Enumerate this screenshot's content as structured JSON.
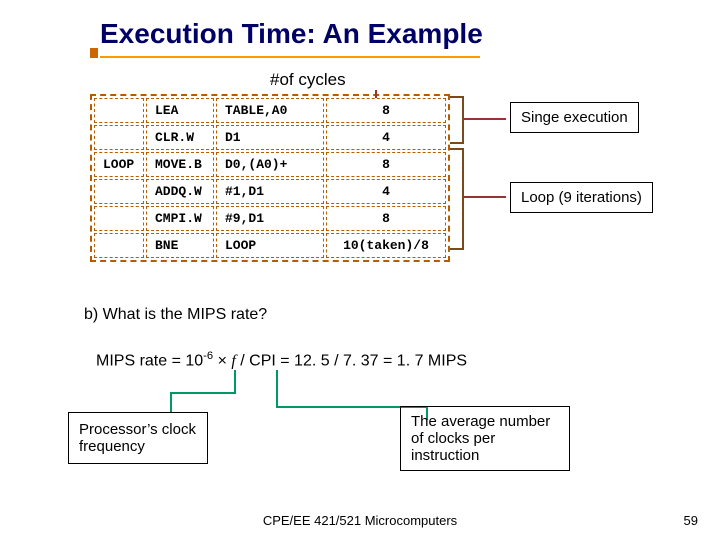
{
  "title": "Execution Time: An Example",
  "cycles_label": "#of cycles",
  "asm": {
    "rows": [
      {
        "label": "",
        "op": "LEA",
        "args": "TABLE,A0",
        "cycles": "8"
      },
      {
        "label": "",
        "op": "CLR.W",
        "args": "D1",
        "cycles": "4"
      },
      {
        "label": "LOOP",
        "op": "MOVE.B",
        "args": "D0,(A0)+",
        "cycles": "8"
      },
      {
        "label": "",
        "op": "ADDQ.W",
        "args": "#1,D1",
        "cycles": "4"
      },
      {
        "label": "",
        "op": "CMPI.W",
        "args": "#9,D1",
        "cycles": "8"
      },
      {
        "label": "",
        "op": "BNE",
        "args": "LOOP",
        "cycles": "10(taken)/8"
      }
    ]
  },
  "callout_single": "Singe execution",
  "callout_loop": "Loop (9 iterations)",
  "question_b": "b) What is the MIPS rate?",
  "mips_prefix": "MIPS rate = 10",
  "mips_exp": "-6",
  "mips_mid1": " × ",
  "mips_f": "f",
  "mips_mid2": " / CPI = 12. 5 / 7. 37 = 1. 7 MIPS",
  "proc_box": "Processor’s clock frequency",
  "avg_box": "The average number of clocks per instruction",
  "footer": "CPE/EE 421/521 Microcomputers",
  "page": "59",
  "colors": {
    "title": "#000066",
    "underline": "#ff9900",
    "table_border": "#b85c00",
    "bracket": "#7a4a1a",
    "arrow": "#993333",
    "connector": "#009966"
  }
}
